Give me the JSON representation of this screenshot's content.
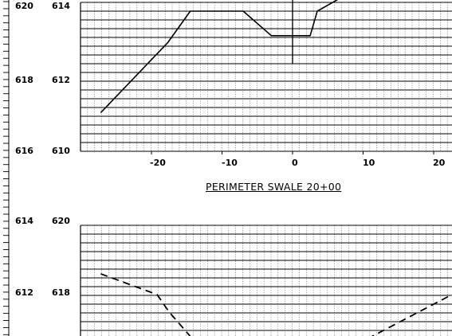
{
  "left_scale": {
    "labels": [
      "620",
      "618",
      "616",
      "614",
      "612"
    ]
  },
  "upper_section": {
    "elevation_labels": [
      "614",
      "612",
      "610"
    ],
    "x_tick_labels": [
      "-20",
      "-10",
      "0",
      "10",
      "20"
    ],
    "caption": "PERIMETER SWALE 20+00"
  },
  "lower_section": {
    "elevation_labels": [
      "620",
      "618"
    ]
  },
  "chart_data": [
    {
      "type": "line",
      "title": "PERIMETER SWALE 20+00",
      "xlabel": "",
      "ylabel": "",
      "x_ticks": [
        -20,
        -10,
        0,
        10,
        20
      ],
      "y_ticks": [
        610,
        612,
        614
      ],
      "series": [
        {
          "style": "solid",
          "points": [
            [
              -27.2,
              611.1
            ],
            [
              -17.7,
              613.1
            ],
            [
              -14.5,
              614.0
            ],
            [
              -7.0,
              614.0
            ],
            [
              -3.0,
              613.3
            ],
            [
              2.5,
              613.3
            ],
            [
              3.5,
              614.0
            ],
            [
              7.0,
              614.4
            ]
          ]
        }
      ],
      "centerline_x": 0
    },
    {
      "type": "line",
      "title": "",
      "xlabel": "",
      "ylabel": "",
      "y_ticks": [
        618,
        620
      ],
      "series": [
        {
          "style": "dashed",
          "points": [
            [
              -27.2,
              618.6
            ],
            [
              -19.2,
              618.0
            ],
            [
              -17.5,
              617.5
            ],
            [
              -12.8,
              616.4
            ],
            [
              8.5,
              616.5
            ],
            [
              22.6,
              618.0
            ]
          ]
        }
      ]
    }
  ]
}
